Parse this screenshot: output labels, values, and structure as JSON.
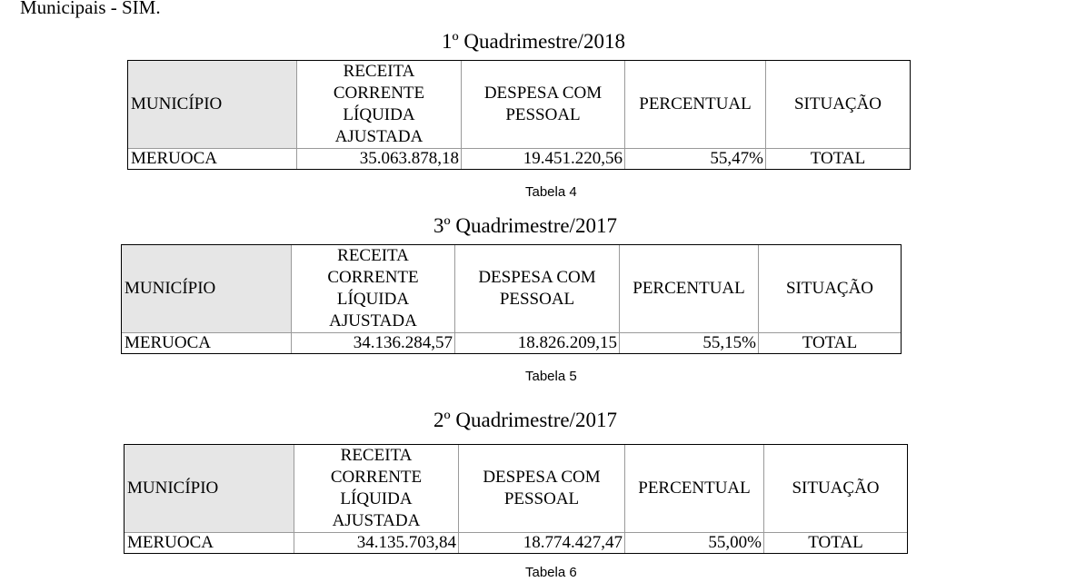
{
  "intro_text": "Municipais - SIM.",
  "headers": {
    "municipio": "MUNICÍPIO",
    "receita": "RECEITA CORRENTE LÍQUIDA AJUSTADA",
    "despesa": "DESPESA COM PESSOAL",
    "percentual": "PERCENTUAL",
    "situacao": "SITUAÇÃO"
  },
  "tables": [
    {
      "caption": "1º Quadrimestre/2018",
      "label": "Tabela 4",
      "row": {
        "municipio": "MERUOCA",
        "receita": "35.063.878,18",
        "despesa": "19.451.220,56",
        "percentual": "55,47%",
        "situacao": "TOTAL"
      }
    },
    {
      "caption": "3º Quadrimestre/2017",
      "label": "Tabela 5",
      "row": {
        "municipio": "MERUOCA",
        "receita": "34.136.284,57",
        "despesa": "18.826.209,15",
        "percentual": "55,15%",
        "situacao": "TOTAL"
      }
    },
    {
      "caption": "2º Quadrimestre/2017",
      "label": "Tabela 6",
      "row": {
        "municipio": "MERUOCA",
        "receita": "34.135.703,84",
        "despesa": "18.774.427,47",
        "percentual": "55,00%",
        "situacao": "TOTAL"
      }
    }
  ]
}
